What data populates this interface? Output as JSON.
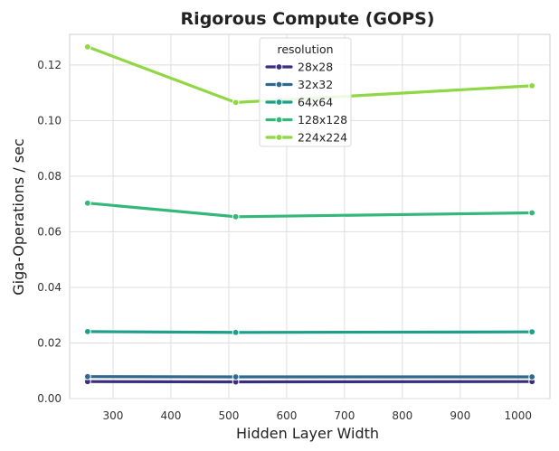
{
  "chart_data": {
    "type": "line",
    "title": "Rigorous Compute (GOPS)",
    "xlabel": "Hidden Layer Width",
    "ylabel": "Giga-Operations / sec",
    "x": [
      256,
      512,
      1024
    ],
    "xlim": [
      225,
      1055
    ],
    "ylim": [
      0,
      0.131
    ],
    "xticks": [
      300,
      400,
      500,
      600,
      700,
      800,
      900,
      1000
    ],
    "yticks": [
      0.0,
      0.02,
      0.04,
      0.06,
      0.08,
      0.1,
      0.12
    ],
    "ytick_labels": [
      "0.00",
      "0.02",
      "0.04",
      "0.06",
      "0.08",
      "0.10",
      "0.12"
    ],
    "grid": true,
    "legend": {
      "title": "resolution",
      "position": "top-center"
    },
    "series": [
      {
        "name": "28x28",
        "color": "#3b2f7d",
        "values": [
          0.0061,
          0.006,
          0.0061
        ]
      },
      {
        "name": "32x32",
        "color": "#31688e",
        "values": [
          0.0079,
          0.0078,
          0.0078
        ]
      },
      {
        "name": "64x64",
        "color": "#1f9e89",
        "values": [
          0.0241,
          0.0238,
          0.024
        ]
      },
      {
        "name": "128x128",
        "color": "#35b779",
        "values": [
          0.0703,
          0.0654,
          0.0668
        ]
      },
      {
        "name": "224x224",
        "color": "#8fd744",
        "values": [
          0.1265,
          0.1065,
          0.1125
        ]
      }
    ]
  }
}
